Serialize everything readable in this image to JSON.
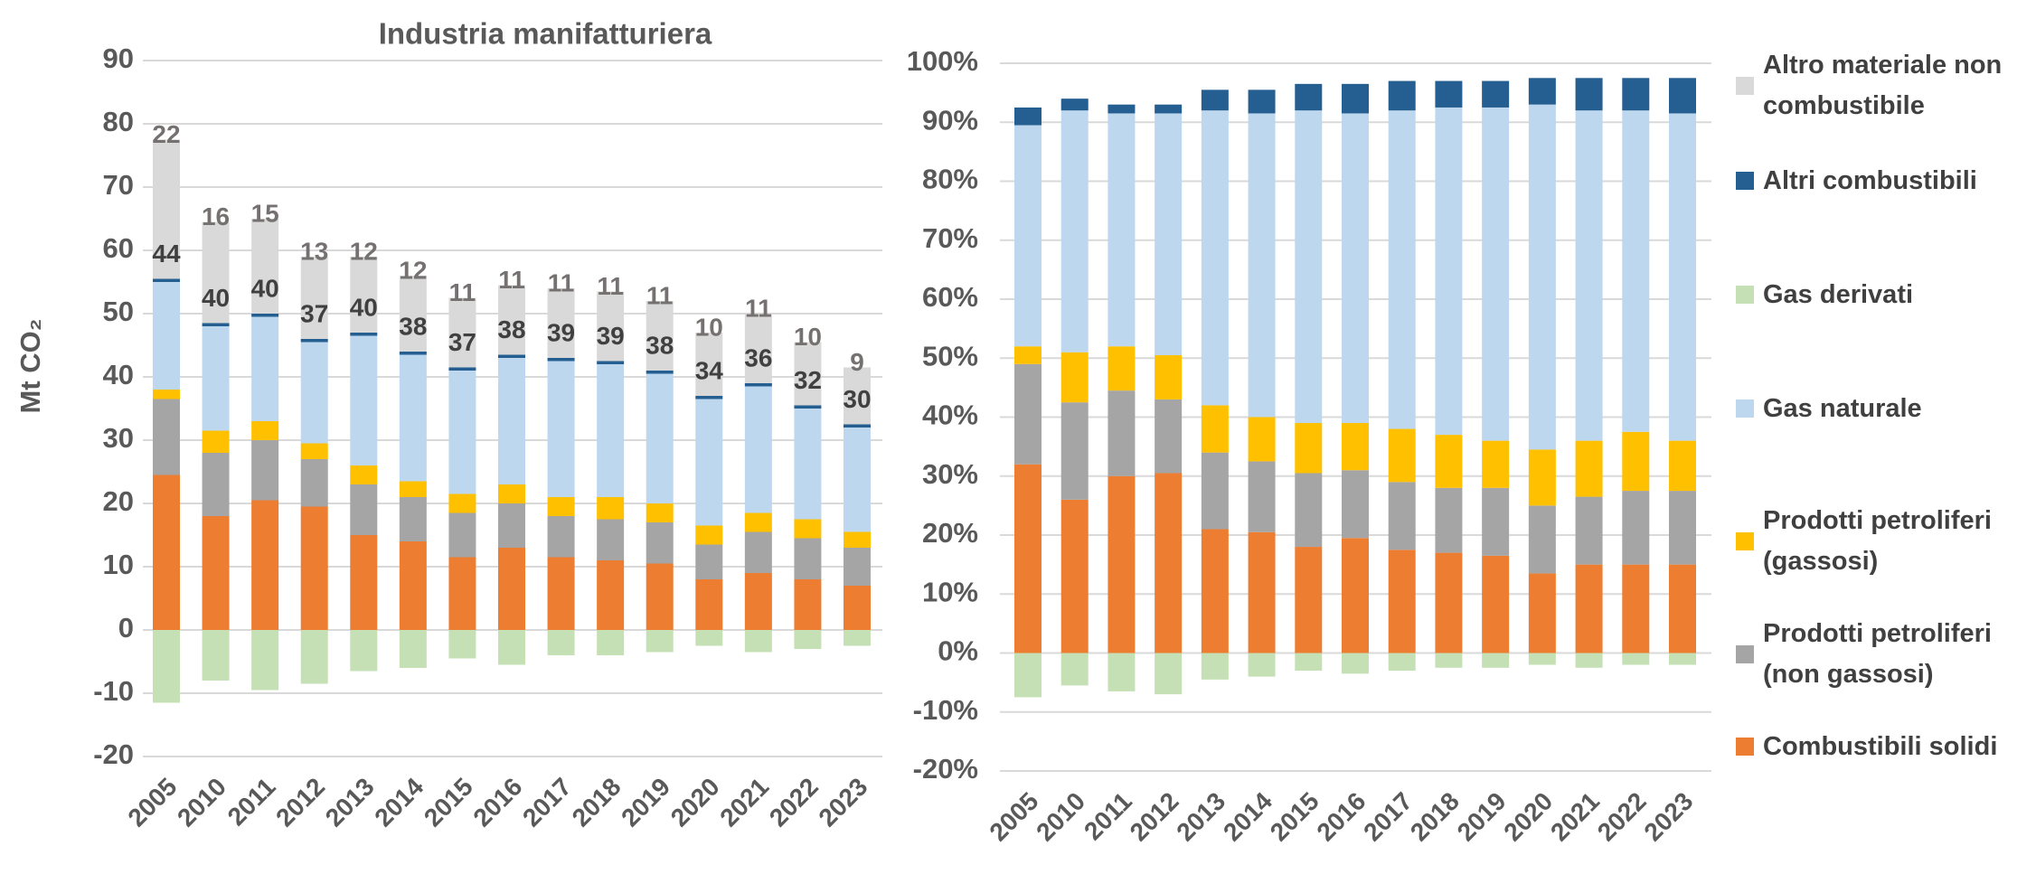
{
  "chart_data": [
    {
      "type": "bar",
      "stacked": true,
      "title": "Industria manifatturiera",
      "y_label": "Mt CO₂",
      "categories": [
        "2005",
        "2010",
        "2011",
        "2012",
        "2013",
        "2014",
        "2015",
        "2016",
        "2017",
        "2018",
        "2019",
        "2020",
        "2021",
        "2022",
        "2023"
      ],
      "series": [
        {
          "name": "Combustibili solidi",
          "color": "#ED7D31",
          "values": [
            24.5,
            18,
            20.5,
            19.5,
            15,
            14,
            11.5,
            13,
            11.5,
            11,
            10.5,
            8,
            9,
            8,
            7
          ]
        },
        {
          "name": "Prodotti petroliferi (non gassosi)",
          "color": "#A5A5A5",
          "values": [
            12,
            10,
            9.5,
            7.5,
            8,
            7,
            7,
            7,
            6.5,
            6.5,
            6.5,
            5.5,
            6.5,
            6.5,
            6
          ]
        },
        {
          "name": "Prodotti petroliferi (gassosi)",
          "color": "#FFC000",
          "values": [
            1.5,
            3.5,
            3,
            2.5,
            3,
            2.5,
            3,
            3,
            3,
            3.5,
            3,
            3,
            3,
            3,
            2.5
          ]
        },
        {
          "name": "Gas naturale",
          "color": "#BDD7EE",
          "values": [
            17,
            16.5,
            16.5,
            16,
            20.5,
            20,
            19.5,
            20,
            21.5,
            21,
            20.5,
            20,
            20,
            17.5,
            16.5
          ]
        },
        {
          "name": "Altri combustibili",
          "color": "#255E91",
          "values": [
            0.5,
            0.5,
            0.5,
            0.5,
            0.5,
            0.5,
            0.5,
            0.5,
            0.5,
            0.5,
            0.5,
            0.5,
            0.5,
            0.5,
            0.5
          ]
        },
        {
          "name": "Gas derivati",
          "color": "#C5E0B4",
          "values": [
            -11.5,
            -8,
            -9.5,
            -8.5,
            -6.5,
            -6,
            -4.5,
            -5.5,
            -4,
            -4,
            -3.5,
            -2.5,
            -3.5,
            -3,
            -2.5
          ]
        },
        {
          "name": "Altro materiale non combustibile",
          "color": "#D9D9D9",
          "values": [
            22,
            16,
            15,
            13,
            12,
            12,
            11,
            11,
            11,
            11,
            11,
            10,
            11,
            10,
            9
          ]
        }
      ],
      "net_totals": [
        44,
        40,
        40,
        37,
        40,
        38,
        37,
        38,
        39,
        39,
        38,
        34,
        36,
        32,
        30
      ],
      "ylim": [
        -20,
        90
      ],
      "yticks": [
        -20,
        -10,
        0,
        10,
        20,
        30,
        40,
        50,
        60,
        70,
        80,
        90
      ],
      "grid": true
    },
    {
      "type": "bar",
      "stacked": true,
      "categories": [
        "2005",
        "2010",
        "2011",
        "2012",
        "2013",
        "2014",
        "2015",
        "2016",
        "2017",
        "2018",
        "2019",
        "2020",
        "2021",
        "2022",
        "2023"
      ],
      "series": [
        {
          "color": "#ED7D31",
          "values": [
            32,
            26,
            30,
            30.5,
            21,
            20.5,
            18,
            19.5,
            17.5,
            17,
            16.5,
            13.5,
            15,
            15,
            15
          ]
        },
        {
          "color": "#A5A5A5",
          "values": [
            17,
            16.5,
            14.5,
            12.5,
            13,
            12,
            12.5,
            11.5,
            11.5,
            11,
            11.5,
            11.5,
            11.5,
            12.5,
            12.5
          ]
        },
        {
          "color": "#FFC000",
          "values": [
            3,
            8.5,
            7.5,
            7.5,
            8,
            7.5,
            8.5,
            8,
            9,
            9,
            8,
            9.5,
            9.5,
            10,
            8.5
          ]
        },
        {
          "color": "#BDD7EE",
          "values": [
            37.5,
            41,
            39.5,
            41,
            50,
            51.5,
            53,
            52.5,
            54,
            55.5,
            56.5,
            58.5,
            56,
            54.5,
            55.5
          ]
        },
        {
          "color": "#255E91",
          "values": [
            3,
            2,
            1.5,
            1.5,
            3.5,
            4,
            4.5,
            5,
            5,
            4.5,
            4.5,
            4.5,
            5.5,
            5.5,
            6
          ]
        },
        {
          "color": "#C5E0B4",
          "values": [
            -7.5,
            -5.5,
            -6.5,
            -7,
            -4.5,
            -4,
            -3,
            -3.5,
            -3,
            -2.5,
            -2.5,
            -2,
            -2.5,
            -2,
            -2
          ]
        }
      ],
      "ylim": [
        -20,
        100
      ],
      "yticks": [
        {
          "value": -20,
          "label": "-20%"
        },
        {
          "value": -10,
          "label": "-10%"
        },
        {
          "value": 0,
          "label": "0%"
        },
        {
          "value": 10,
          "label": "10%"
        },
        {
          "value": 20,
          "label": "20%"
        },
        {
          "value": 30,
          "label": "30%"
        },
        {
          "value": 40,
          "label": "40%"
        },
        {
          "value": 50,
          "label": "50%"
        },
        {
          "value": 60,
          "label": "60%"
        },
        {
          "value": 70,
          "label": "70%"
        },
        {
          "value": 80,
          "label": "80%"
        },
        {
          "value": 90,
          "label": "90%"
        },
        {
          "value": 100,
          "label": "100%"
        }
      ],
      "grid": true
    }
  ]
}
